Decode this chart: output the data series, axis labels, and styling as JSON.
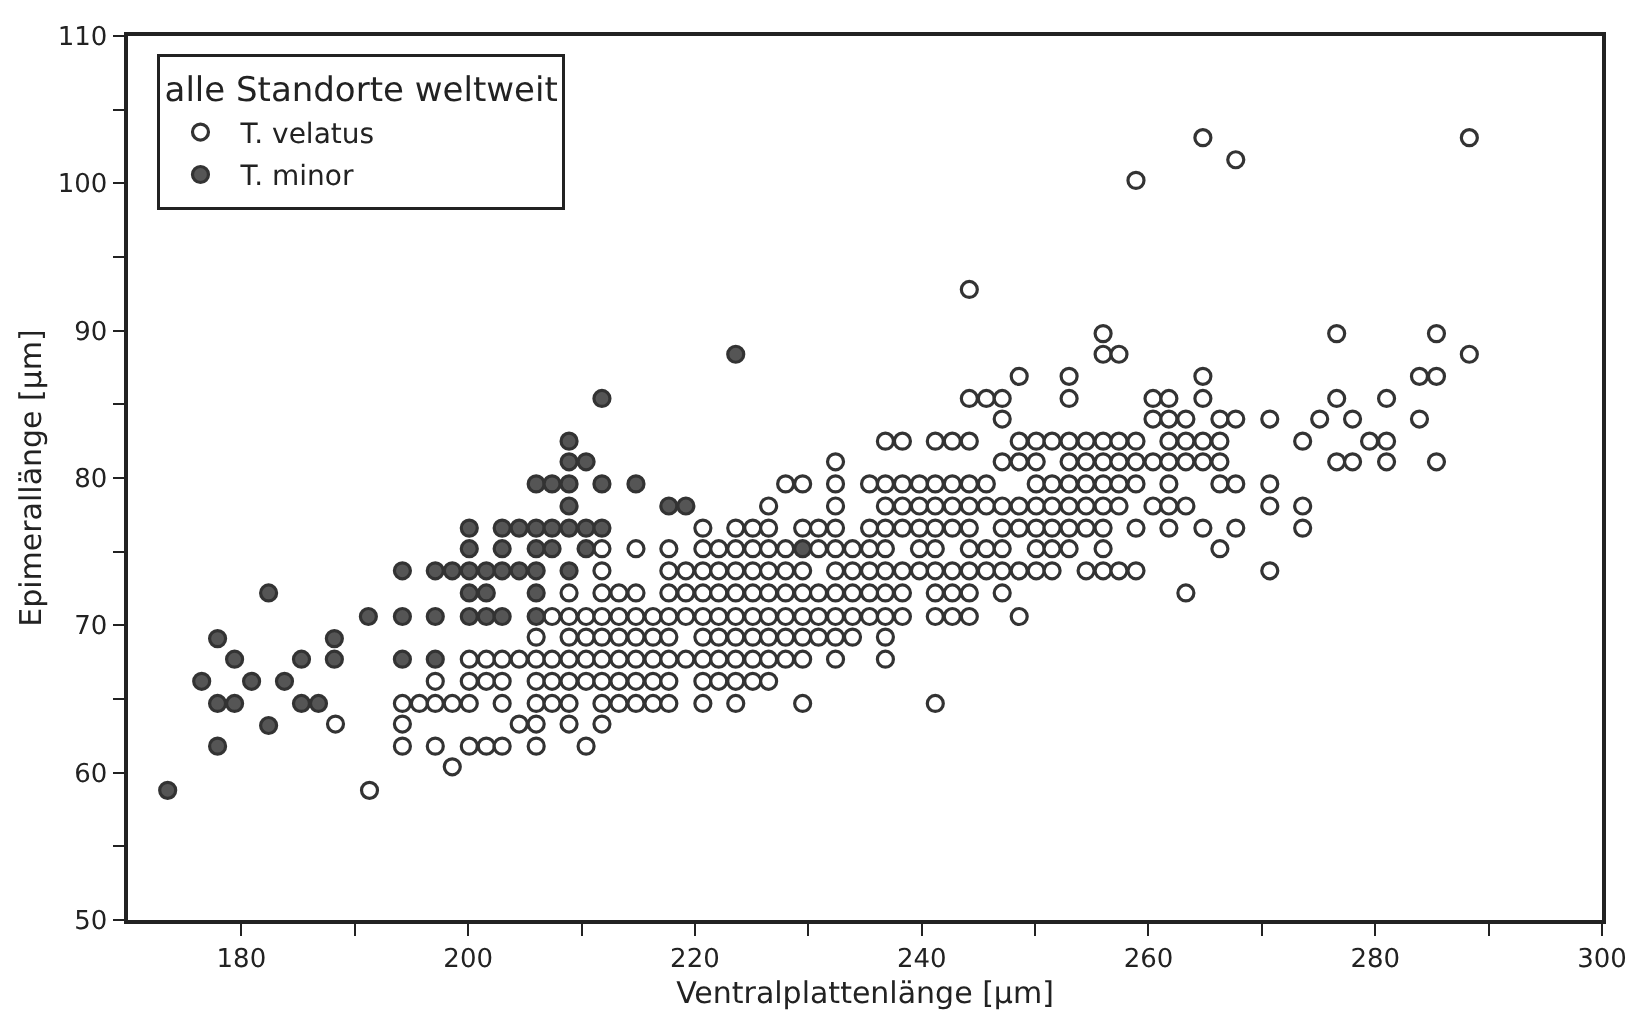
{
  "chart_data": {
    "type": "scatter",
    "xlabel": "Ventralplattenlänge [µm]",
    "ylabel": "Epimerallänge [µm]",
    "legend_title": "alle Standorte weltweit",
    "xlim": [
      170,
      300
    ],
    "xticks": [
      {
        "value": 180,
        "label": "180"
      },
      {
        "value": 190,
        "label": null
      },
      {
        "value": 200,
        "label": "200"
      },
      {
        "value": 210,
        "label": null
      },
      {
        "value": 220,
        "label": "220"
      },
      {
        "value": 230,
        "label": null
      },
      {
        "value": 240,
        "label": "240"
      },
      {
        "value": 250,
        "label": null
      },
      {
        "value": 260,
        "label": "260"
      },
      {
        "value": 270,
        "label": null
      },
      {
        "value": 280,
        "label": "280"
      },
      {
        "value": 290,
        "label": null
      },
      {
        "value": 300,
        "label": "300"
      }
    ],
    "ylim": [
      50,
      110
    ],
    "yticks": [
      50,
      {
        "value": 55,
        "label": null
      },
      60,
      {
        "value": 65,
        "label": null
      },
      70,
      {
        "value": 75,
        "label": null
      },
      80,
      {
        "value": 85,
        "label": null
      },
      90,
      {
        "value": 95,
        "label": null
      },
      100,
      {
        "value": 105,
        "label": null
      },
      110
    ],
    "legend": "top left",
    "marker": "circle",
    "series": [
      {
        "name": "T. velatus",
        "color": "#ffffff",
        "x": [
          198.6,
          191.3,
          194.2,
          197.1,
          200.1,
          201.6,
          203.0,
          206.0,
          210.4,
          188.3,
          194.2,
          204.5,
          206.0,
          208.9,
          211.8,
          194.2,
          195.7,
          197.1,
          198.6,
          200.1,
          203.0,
          206.0,
          207.4,
          208.9,
          211.8,
          213.3,
          214.8,
          216.3,
          217.7,
          220.7,
          223.6,
          229.5,
          241.2,
          197.1,
          200.1,
          201.6,
          203.0,
          206.0,
          207.4,
          208.9,
          210.4,
          211.8,
          213.3,
          214.8,
          216.3,
          217.7,
          220.7,
          222.1,
          223.6,
          225.1,
          226.5,
          200.1,
          201.6,
          203.0,
          204.5,
          206.0,
          207.4,
          208.9,
          210.4,
          211.8,
          213.3,
          214.8,
          216.3,
          217.7,
          219.2,
          220.7,
          222.1,
          223.6,
          225.1,
          226.5,
          228.0,
          229.5,
          232.4,
          236.8,
          206.0,
          208.9,
          210.4,
          211.8,
          213.3,
          214.8,
          216.3,
          217.7,
          220.7,
          222.1,
          223.6,
          225.1,
          226.5,
          228.0,
          229.5,
          230.9,
          232.4,
          233.9,
          236.8,
          207.4,
          208.9,
          210.4,
          211.8,
          213.3,
          214.8,
          216.3,
          217.7,
          219.2,
          220.7,
          222.1,
          223.6,
          225.1,
          226.5,
          228.0,
          229.5,
          230.9,
          232.4,
          233.9,
          235.4,
          236.8,
          238.3,
          241.2,
          242.7,
          244.2,
          248.6,
          208.9,
          211.8,
          213.3,
          214.8,
          217.7,
          219.2,
          220.7,
          222.1,
          223.6,
          225.1,
          226.5,
          228.0,
          229.5,
          230.9,
          232.4,
          233.9,
          235.4,
          236.8,
          238.3,
          241.2,
          242.7,
          244.2,
          247.1,
          263.3,
          211.8,
          217.7,
          219.2,
          220.7,
          222.1,
          223.6,
          225.1,
          226.5,
          228.0,
          229.5,
          232.4,
          233.9,
          235.4,
          236.8,
          238.3,
          239.8,
          241.2,
          242.7,
          244.2,
          245.7,
          247.1,
          248.6,
          250.1,
          251.5,
          254.5,
          256.0,
          257.4,
          258.9,
          270.7,
          211.8,
          214.8,
          217.7,
          220.7,
          222.1,
          223.6,
          225.1,
          226.5,
          228.0,
          230.9,
          232.4,
          233.9,
          235.4,
          236.8,
          239.8,
          241.2,
          244.2,
          245.7,
          247.1,
          250.1,
          251.5,
          253.0,
          256.0,
          266.3,
          220.7,
          223.6,
          225.1,
          226.5,
          229.5,
          230.9,
          232.4,
          235.4,
          236.8,
          238.3,
          239.8,
          241.2,
          242.7,
          244.2,
          247.1,
          248.6,
          250.1,
          251.5,
          253.0,
          254.5,
          256.0,
          258.9,
          261.8,
          264.8,
          267.7,
          273.6,
          226.5,
          232.4,
          236.8,
          238.3,
          239.8,
          241.2,
          242.7,
          244.2,
          245.7,
          247.1,
          248.6,
          250.1,
          251.5,
          253.0,
          254.5,
          256.0,
          257.4,
          260.4,
          261.8,
          263.3,
          270.7,
          273.6,
          228.0,
          229.5,
          232.4,
          235.4,
          236.8,
          238.3,
          239.8,
          241.2,
          242.7,
          244.2,
          245.7,
          250.1,
          251.5,
          253.0,
          254.5,
          256.0,
          257.4,
          258.9,
          261.8,
          266.3,
          267.7,
          270.7,
          232.4,
          247.1,
          248.6,
          250.1,
          253.0,
          254.5,
          256.0,
          257.4,
          258.9,
          260.4,
          261.8,
          263.3,
          264.8,
          266.3,
          276.6,
          278.0,
          281.0,
          285.4,
          236.8,
          238.3,
          241.2,
          242.7,
          244.2,
          248.6,
          250.1,
          251.5,
          253.0,
          254.5,
          256.0,
          257.4,
          258.9,
          261.8,
          263.3,
          264.8,
          266.3,
          273.6,
          279.5,
          281.0,
          247.1,
          260.4,
          261.8,
          263.3,
          266.3,
          267.7,
          270.7,
          275.1,
          278.0,
          283.9,
          244.2,
          245.7,
          247.1,
          253.0,
          260.4,
          261.8,
          264.8,
          276.6,
          281.0,
          248.6,
          253.0,
          264.8,
          283.9,
          285.4,
          256.0,
          257.4,
          288.3,
          256.0,
          276.6,
          285.4,
          244.2,
          258.9,
          267.7,
          264.8,
          288.3
        ],
        "values": [
          60.4,
          58.8,
          61.8,
          61.8,
          61.8,
          61.8,
          61.8,
          61.8,
          61.8,
          63.3,
          63.3,
          63.3,
          63.3,
          63.3,
          63.3,
          64.7,
          64.7,
          64.7,
          64.7,
          64.7,
          64.7,
          64.7,
          64.7,
          64.7,
          64.7,
          64.7,
          64.7,
          64.7,
          64.7,
          64.7,
          64.7,
          64.7,
          64.7,
          66.2,
          66.2,
          66.2,
          66.2,
          66.2,
          66.2,
          66.2,
          66.2,
          66.2,
          66.2,
          66.2,
          66.2,
          66.2,
          66.2,
          66.2,
          66.2,
          66.2,
          66.2,
          67.7,
          67.7,
          67.7,
          67.7,
          67.7,
          67.7,
          67.7,
          67.7,
          67.7,
          67.7,
          67.7,
          67.7,
          67.7,
          67.7,
          67.7,
          67.7,
          67.7,
          67.7,
          67.7,
          67.7,
          67.7,
          67.7,
          67.7,
          69.2,
          69.2,
          69.2,
          69.2,
          69.2,
          69.2,
          69.2,
          69.2,
          69.2,
          69.2,
          69.2,
          69.2,
          69.2,
          69.2,
          69.2,
          69.2,
          69.2,
          69.2,
          69.2,
          70.6,
          70.6,
          70.6,
          70.6,
          70.6,
          70.6,
          70.6,
          70.6,
          70.6,
          70.6,
          70.6,
          70.6,
          70.6,
          70.6,
          70.6,
          70.6,
          70.6,
          70.6,
          70.6,
          70.6,
          70.6,
          70.6,
          70.6,
          70.6,
          70.6,
          70.6,
          72.2,
          72.2,
          72.2,
          72.2,
          72.2,
          72.2,
          72.2,
          72.2,
          72.2,
          72.2,
          72.2,
          72.2,
          72.2,
          72.2,
          72.2,
          72.2,
          72.2,
          72.2,
          72.2,
          72.2,
          72.2,
          72.2,
          72.2,
          72.2,
          73.7,
          73.7,
          73.7,
          73.7,
          73.7,
          73.7,
          73.7,
          73.7,
          73.7,
          73.7,
          73.7,
          73.7,
          73.7,
          73.7,
          73.7,
          73.7,
          73.7,
          73.7,
          73.7,
          73.7,
          73.7,
          73.7,
          73.7,
          73.7,
          73.7,
          73.7,
          73.7,
          73.7,
          73.7,
          75.2,
          75.2,
          75.2,
          75.2,
          75.2,
          75.2,
          75.2,
          75.2,
          75.2,
          75.2,
          75.2,
          75.2,
          75.2,
          75.2,
          75.2,
          75.2,
          75.2,
          75.2,
          75.2,
          75.2,
          75.2,
          75.2,
          75.2,
          75.2,
          76.6,
          76.6,
          76.6,
          76.6,
          76.6,
          76.6,
          76.6,
          76.6,
          76.6,
          76.6,
          76.6,
          76.6,
          76.6,
          76.6,
          76.6,
          76.6,
          76.6,
          76.6,
          76.6,
          76.6,
          76.6,
          76.6,
          76.6,
          76.6,
          76.6,
          76.6,
          78.1,
          78.1,
          78.1,
          78.1,
          78.1,
          78.1,
          78.1,
          78.1,
          78.1,
          78.1,
          78.1,
          78.1,
          78.1,
          78.1,
          78.1,
          78.1,
          78.1,
          78.1,
          78.1,
          78.1,
          78.1,
          78.1,
          79.6,
          79.6,
          79.6,
          79.6,
          79.6,
          79.6,
          79.6,
          79.6,
          79.6,
          79.6,
          79.6,
          79.6,
          79.6,
          79.6,
          79.6,
          79.6,
          79.6,
          79.6,
          79.6,
          79.6,
          79.6,
          79.6,
          81.1,
          81.1,
          81.1,
          81.1,
          81.1,
          81.1,
          81.1,
          81.1,
          81.1,
          81.1,
          81.1,
          81.1,
          81.1,
          81.1,
          81.1,
          81.1,
          81.1,
          81.1,
          82.5,
          82.5,
          82.5,
          82.5,
          82.5,
          82.5,
          82.5,
          82.5,
          82.5,
          82.5,
          82.5,
          82.5,
          82.5,
          82.5,
          82.5,
          82.5,
          82.5,
          82.5,
          82.5,
          82.5,
          84.0,
          84.0,
          84.0,
          84.0,
          84.0,
          84.0,
          84.0,
          84.0,
          84.0,
          84.0,
          85.4,
          85.4,
          85.4,
          85.4,
          85.4,
          85.4,
          85.4,
          85.4,
          85.4,
          86.9,
          86.9,
          86.9,
          86.9,
          86.9,
          88.4,
          88.4,
          88.4,
          89.8,
          89.8,
          89.8,
          92.8,
          100.2,
          101.6,
          103.1,
          103.1
        ]
      },
      {
        "name": "T. minor",
        "color": "#555555",
        "x": [
          173.5,
          177.9,
          182.4,
          177.9,
          179.4,
          185.3,
          186.8,
          176.5,
          180.9,
          183.8,
          179.4,
          185.3,
          188.2,
          194.2,
          197.1,
          177.9,
          188.2,
          191.2,
          194.2,
          197.1,
          200.1,
          201.6,
          203.0,
          206.0,
          182.4,
          200.1,
          201.6,
          206.0,
          194.2,
          197.1,
          198.6,
          200.1,
          201.6,
          203.0,
          204.5,
          206.0,
          208.9,
          200.1,
          203.0,
          206.0,
          207.4,
          210.4,
          229.5,
          200.1,
          203.0,
          204.5,
          206.0,
          207.4,
          208.9,
          210.4,
          211.8,
          208.9,
          217.7,
          219.2,
          206.0,
          207.4,
          208.9,
          211.8,
          214.8,
          208.9,
          210.4,
          208.9,
          211.8,
          223.6
        ],
        "values": [
          58.8,
          61.8,
          63.2,
          64.7,
          64.7,
          64.7,
          64.7,
          66.2,
          66.2,
          66.2,
          67.7,
          67.7,
          67.7,
          67.7,
          67.7,
          69.1,
          69.1,
          70.6,
          70.6,
          70.6,
          70.6,
          70.6,
          70.6,
          70.6,
          72.2,
          72.2,
          72.2,
          72.2,
          73.7,
          73.7,
          73.7,
          73.7,
          73.7,
          73.7,
          73.7,
          73.7,
          73.7,
          75.2,
          75.2,
          75.2,
          75.2,
          75.2,
          75.2,
          76.6,
          76.6,
          76.6,
          76.6,
          76.6,
          76.6,
          76.6,
          76.6,
          78.1,
          78.1,
          78.1,
          79.6,
          79.6,
          79.6,
          79.6,
          79.6,
          81.1,
          81.1,
          82.5,
          85.4,
          88.4
        ]
      }
    ]
  }
}
